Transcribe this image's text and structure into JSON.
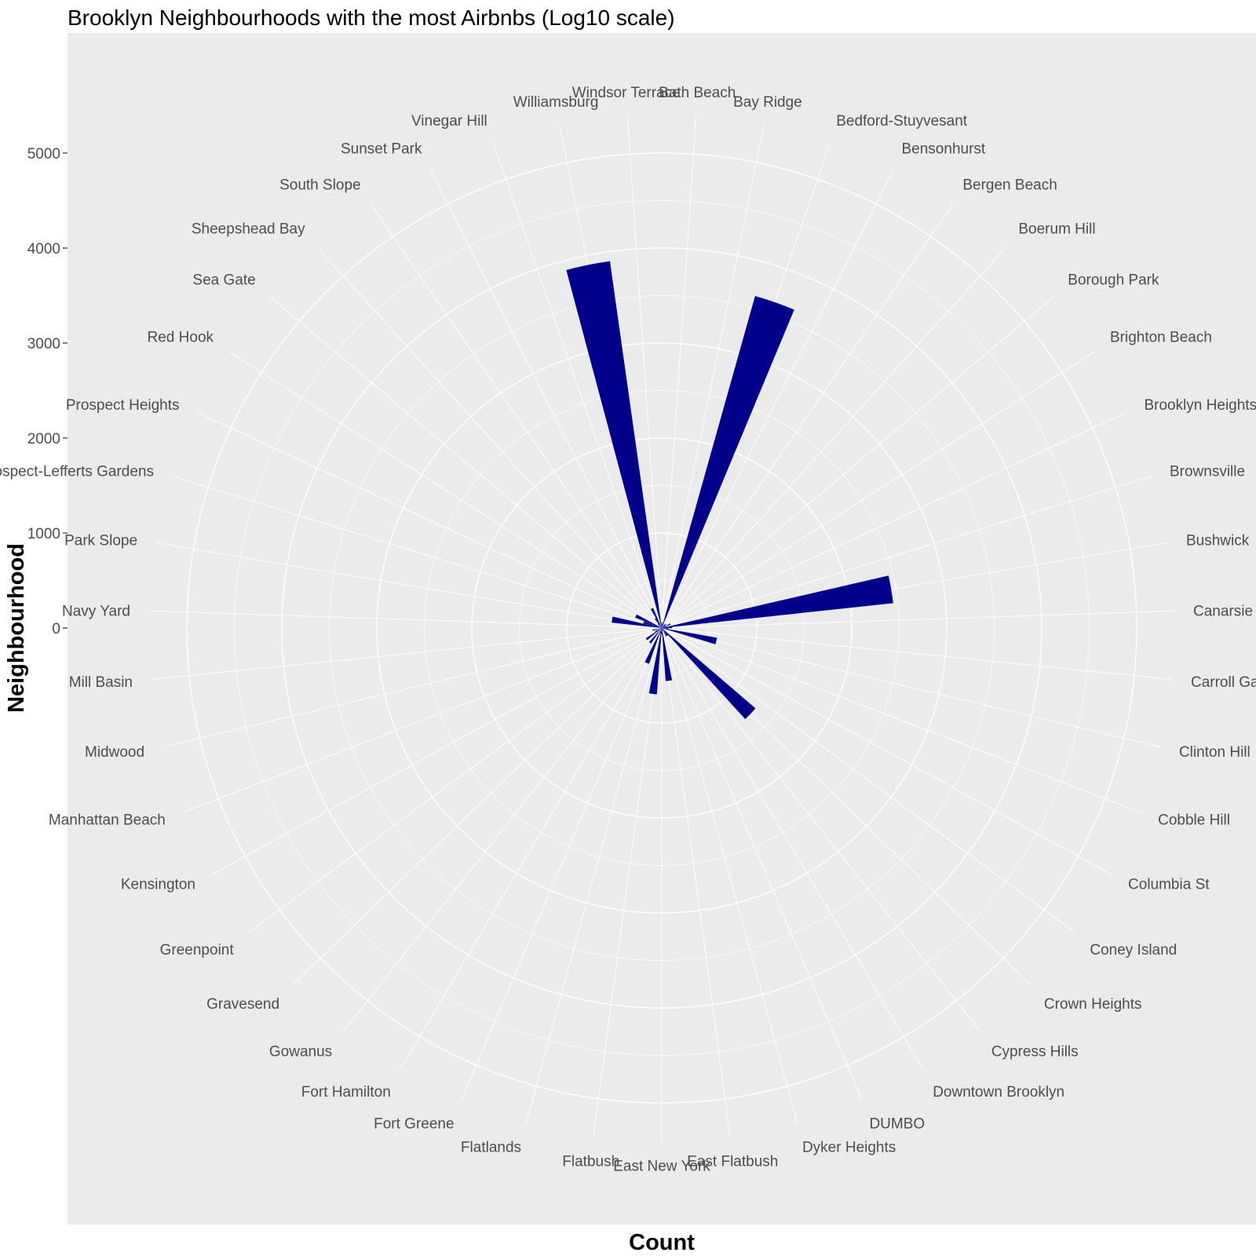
{
  "chart_data": {
    "type": "bar",
    "coord": "polar",
    "title": "Brooklyn Neighbourhoods with the most Airbnbs (Log10 scale)",
    "xlabel": "Count",
    "ylabel": "Neighbourhood",
    "y_ticks": [
      0,
      1000,
      2000,
      3000,
      4000,
      5000
    ],
    "ylim": [
      0,
      5400
    ],
    "grid": true,
    "bar_color": "#00008b",
    "panel_color": "#ebebeb",
    "grid_color": "#ffffff",
    "categories": [
      "Bath Beach",
      "Bay Ridge",
      "Bedford-Stuyvesant",
      "Bensonhurst",
      "Bergen Beach",
      "Boerum Hill",
      "Borough Park",
      "Brighton Beach",
      "Brooklyn Heights",
      "Brownsville",
      "Bushwick",
      "Canarsie",
      "Carroll Gardens",
      "Clinton Hill",
      "Cobble Hill",
      "Columbia St",
      "Coney Island",
      "Crown Heights",
      "Cypress Hills",
      "Downtown Brooklyn",
      "DUMBO",
      "Dyker Heights",
      "East Flatbush",
      "East New York",
      "Flatbush",
      "Flatlands",
      "Fort Greene",
      "Fort Hamilton",
      "Gowanus",
      "Gravesend",
      "Greenpoint",
      "Kensington",
      "Manhattan Beach",
      "Midwood",
      "Mill Basin",
      "Navy Yard",
      "Park Slope",
      "Prospect-Lefferts Gardens",
      "Prospect Heights",
      "Red Hook",
      "Sea Gate",
      "Sheepshead Bay",
      "South Slope",
      "Sunset Park",
      "Vinegar Hill",
      "Williamsburg",
      "Windsor Terrace"
    ],
    "values": [
      40,
      60,
      3630,
      40,
      10,
      60,
      60,
      40,
      100,
      50,
      2450,
      110,
      70,
      590,
      20,
      30,
      20,
      1300,
      100,
      100,
      20,
      30,
      560,
      70,
      700,
      60,
      400,
      20,
      200,
      20,
      200,
      80,
      10,
      100,
      10,
      10,
      530,
      200,
      300,
      50,
      10,
      60,
      120,
      230,
      10,
      3900,
      60
    ]
  }
}
